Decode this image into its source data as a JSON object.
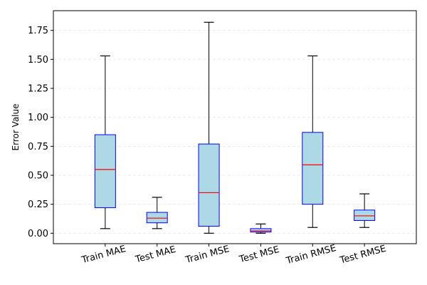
{
  "chart_data": {
    "type": "box",
    "title": "",
    "xlabel": "",
    "ylabel": "Error Value",
    "ylim": [
      -0.09,
      1.92
    ],
    "yticks": [
      0.0,
      0.25,
      0.5,
      0.75,
      1.0,
      1.25,
      1.5,
      1.75
    ],
    "ytick_labels": [
      "0.00",
      "0.25",
      "0.50",
      "0.75",
      "1.00",
      "1.25",
      "1.50",
      "1.75"
    ],
    "grid": true,
    "grid_axis": "y",
    "box_fill": "#add8e6",
    "box_edge": "#0000ff",
    "median_color": "#ff0000",
    "whisker_color": "#000000",
    "categories": [
      "Train MAE",
      "Test MAE",
      "Train MSE",
      "Test MSE",
      "Train RMSE",
      "Test RMSE"
    ],
    "boxes": [
      {
        "min": 0.04,
        "q1": 0.22,
        "median": 0.55,
        "q3": 0.85,
        "max": 1.53
      },
      {
        "min": 0.04,
        "q1": 0.09,
        "median": 0.13,
        "q3": 0.18,
        "max": 0.31
      },
      {
        "min": 0.0,
        "q1": 0.06,
        "median": 0.35,
        "q3": 0.77,
        "max": 1.82
      },
      {
        "min": 0.0,
        "q1": 0.01,
        "median": 0.02,
        "q3": 0.04,
        "max": 0.08
      },
      {
        "min": 0.05,
        "q1": 0.25,
        "median": 0.59,
        "q3": 0.87,
        "max": 1.53
      },
      {
        "min": 0.05,
        "q1": 0.11,
        "median": 0.15,
        "q3": 0.2,
        "max": 0.34
      }
    ]
  }
}
